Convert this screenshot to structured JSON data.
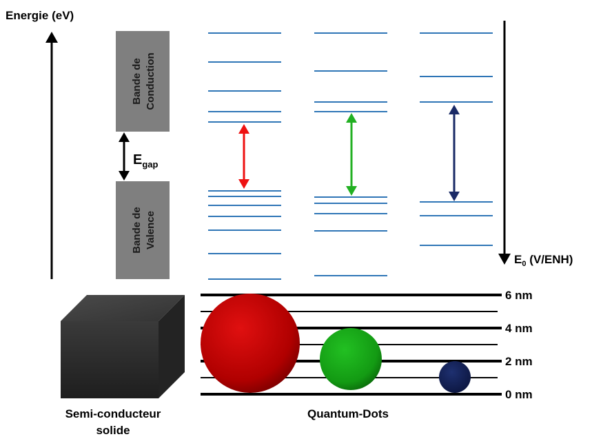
{
  "axis": {
    "energy_label": "Energie (eV)",
    "potential_label_main": "E",
    "potential_label_sub": "0",
    "potential_label_unit": " (V/ENH)"
  },
  "bulk": {
    "conduction_line1": "Bande de",
    "conduction_line2": "Conduction",
    "valence_line1": "Bande de",
    "valence_line2": "Valence",
    "gap_main": "E",
    "gap_sub": "gap",
    "caption_line1": "Semi-conducteur",
    "caption_line2": "solide"
  },
  "quantum_dots": {
    "caption": "Quantum-Dots",
    "colors": {
      "large": "#dd1111",
      "medium": "#22aa22",
      "small": "#1a2a66"
    }
  },
  "size_scale": {
    "labels": [
      "6 nm",
      "4 nm",
      "2 nm",
      "0 nm"
    ]
  },
  "colors": {
    "level_line": "#2e75b6",
    "band_box": "#7f7f7f"
  }
}
